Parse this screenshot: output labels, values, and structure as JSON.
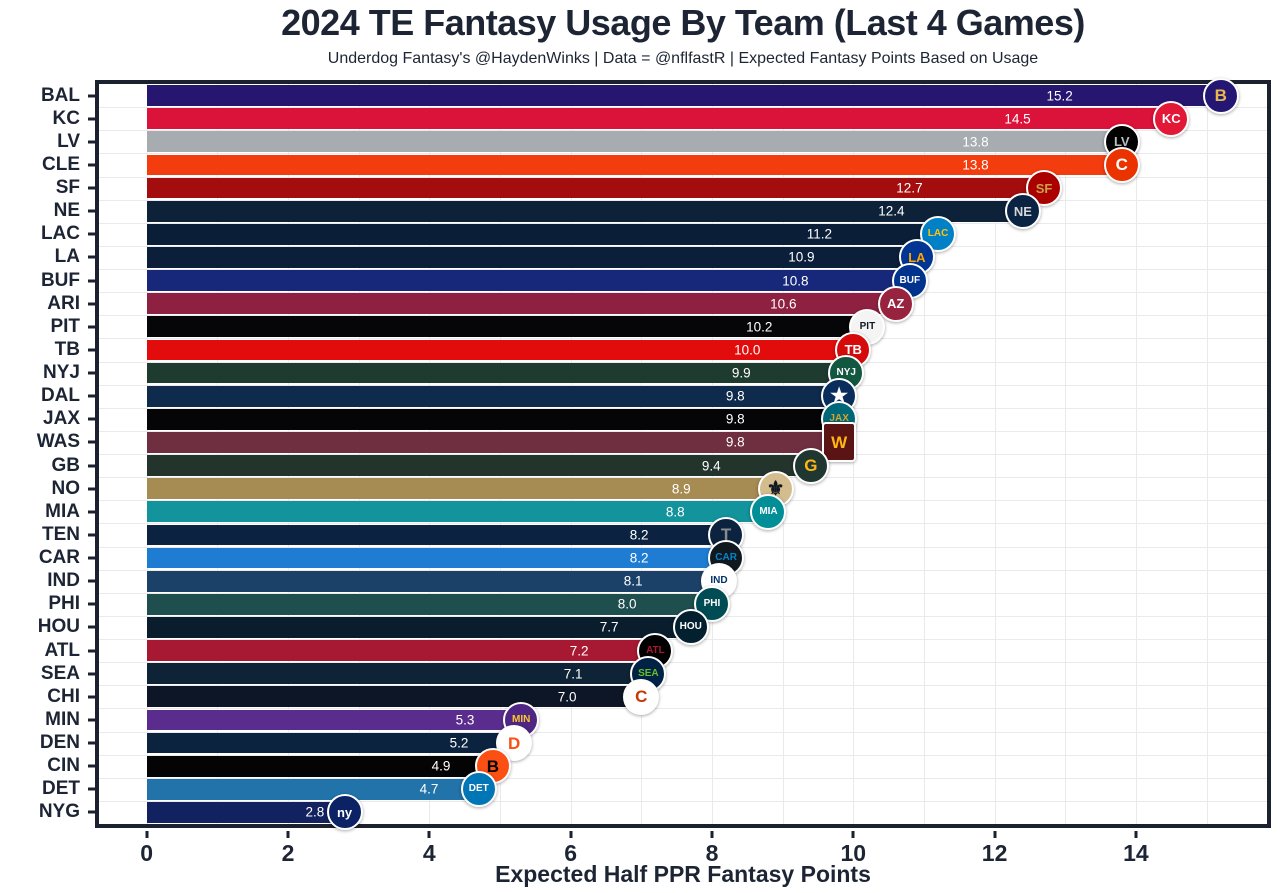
{
  "header": {
    "title": "2024 TE Fantasy Usage By Team (Last 4 Games)",
    "subtitle": "Underdog Fantasy's @HaydenWinks | Data = @nflfastR | Expected Fantasy Points Based on Usage"
  },
  "axis": {
    "xlabel": "Expected Half PPR Fantasy Points",
    "ticks": [
      0,
      2,
      4,
      6,
      8,
      10,
      12,
      14
    ],
    "domain_min": -0.675,
    "domain_max": 15.855,
    "grid_values": [
      0,
      1,
      2,
      3,
      4,
      5,
      6,
      7,
      8,
      9,
      10,
      11,
      12,
      13,
      14,
      15
    ]
  },
  "colors": {
    "text": "#1d2535",
    "panel_border": "#1b212e",
    "grid": "#e9e9ee",
    "bar_label": "#ffffff",
    "background": "#ffffff"
  },
  "chart_data": {
    "type": "bar",
    "orientation": "horizontal",
    "title": "2024 TE Fantasy Usage By Team (Last 4 Games)",
    "subtitle": "Underdog Fantasy's @HaydenWinks | Data = @nflfastR | Expected Fantasy Points Based on Usage",
    "xlabel": "Expected Half PPR Fantasy Points",
    "ylabel": "",
    "xlim": [
      0,
      15.9
    ],
    "grid": true,
    "legend": false,
    "categories": [
      "BAL",
      "KC",
      "LV",
      "CLE",
      "SF",
      "NE",
      "LAC",
      "LA",
      "BUF",
      "ARI",
      "PIT",
      "TB",
      "NYJ",
      "DAL",
      "JAX",
      "WAS",
      "GB",
      "NO",
      "MIA",
      "TEN",
      "CAR",
      "IND",
      "PHI",
      "HOU",
      "ATL",
      "SEA",
      "CHI",
      "MIN",
      "DEN",
      "CIN",
      "DET",
      "NYG"
    ],
    "values": [
      15.2,
      14.5,
      13.8,
      13.8,
      12.7,
      12.4,
      11.2,
      10.9,
      10.8,
      10.6,
      10.2,
      10.0,
      9.9,
      9.8,
      9.8,
      9.8,
      9.4,
      8.9,
      8.8,
      8.2,
      8.2,
      8.1,
      8.0,
      7.7,
      7.2,
      7.1,
      7.0,
      5.3,
      5.2,
      4.9,
      4.7,
      2.8
    ],
    "value_labels": [
      "15.2",
      "14.5",
      "13.8",
      "13.8",
      "12.7",
      "12.4",
      "11.2",
      "10.9",
      "10.8",
      "10.6",
      "10.2",
      "10.0",
      "9.9",
      "9.8",
      "9.8",
      "9.8",
      "9.4",
      "8.9",
      "8.8",
      "8.2",
      "8.2",
      "8.1",
      "8.0",
      "7.7",
      "7.2",
      "7.1",
      "7.0",
      "5.3",
      "5.2",
      "4.9",
      "4.7",
      "2.8"
    ],
    "bar_colors": [
      "#271670",
      "#DB1239",
      "#A6ACB0",
      "#F43D0E",
      "#A40D0D",
      "#0D2238",
      "#0A1E38",
      "#0B1F3A",
      "#17287B",
      "#8E2041",
      "#060608",
      "#E20C0C",
      "#1E3B2F",
      "#0E2A4C",
      "#050507",
      "#6F2F40",
      "#23342C",
      "#A68B52",
      "#13939C",
      "#0B2340",
      "#1E7DD3",
      "#1C4168",
      "#1E4E4E",
      "#0A1D2C",
      "#A71932",
      "#0E2336",
      "#0C1627",
      "#5A2C8D",
      "#0C2340",
      "#040405",
      "#2173A9",
      "#12215F"
    ]
  },
  "logos": {
    "BAL": {
      "bg": "#241773",
      "fg": "#E8B84F",
      "text": "B"
    },
    "KC": {
      "bg": "#E31837",
      "fg": "#FFFFFF",
      "text": "KC"
    },
    "LV": {
      "bg": "#000000",
      "fg": "#B9BEC1",
      "text": "LV"
    },
    "CLE": {
      "bg": "#EB3300",
      "fg": "#FFFFFF",
      "text": "C"
    },
    "SF": {
      "bg": "#AA0000",
      "fg": "#C9A24B",
      "text": "SF"
    },
    "NE": {
      "bg": "#0B2343",
      "fg": "#D6D6D6",
      "text": "NE"
    },
    "LAC": {
      "bg": "#0080C6",
      "fg": "#FFC20E",
      "text": "LAC"
    },
    "LA": {
      "bg": "#003594",
      "fg": "#FFA300",
      "text": "LA"
    },
    "BUF": {
      "bg": "#00338D",
      "fg": "#FFFFFF",
      "text": "BUF"
    },
    "ARI": {
      "bg": "#97233F",
      "fg": "#FFFFFF",
      "text": "AZ"
    },
    "PIT": {
      "bg": "#F4F4F4",
      "fg": "#101820",
      "text": "PIT"
    },
    "TB": {
      "bg": "#D50A0A",
      "fg": "#FFFFFF",
      "text": "TB"
    },
    "NYJ": {
      "bg": "#125740",
      "fg": "#FFFFFF",
      "text": "NYJ"
    },
    "DAL": {
      "bg": "#0A2E5C",
      "fg": "#FFFFFF",
      "text": "★"
    },
    "JAX": {
      "bg": "#006778",
      "fg": "#D7A22A",
      "text": "JAX"
    },
    "WAS": {
      "bg": "#5A1414",
      "fg": "#FFB612",
      "text": "W",
      "shape": "square"
    },
    "GB": {
      "bg": "#203731",
      "fg": "#FFB612",
      "text": "G"
    },
    "NO": {
      "bg": "#D3BC8D",
      "fg": "#101820",
      "text": "⚜"
    },
    "MIA": {
      "bg": "#008E97",
      "fg": "#FFFFFF",
      "text": "MIA"
    },
    "TEN": {
      "bg": "#0C2340",
      "fg": "#8A8D8F",
      "text": "T"
    },
    "CAR": {
      "bg": "#101820",
      "fg": "#0085CA",
      "text": "CAR"
    },
    "IND": {
      "bg": "#FFFFFF",
      "fg": "#013369",
      "text": "IND"
    },
    "PHI": {
      "bg": "#004C54",
      "fg": "#FFFFFF",
      "text": "PHI"
    },
    "HOU": {
      "bg": "#03202F",
      "fg": "#FFFFFF",
      "text": "HOU"
    },
    "ATL": {
      "bg": "#000000",
      "fg": "#A71930",
      "text": "ATL"
    },
    "SEA": {
      "bg": "#002244",
      "fg": "#69BE28",
      "text": "SEA"
    },
    "CHI": {
      "bg": "#FFFFFF",
      "fg": "#C83803",
      "text": "C"
    },
    "MIN": {
      "bg": "#4F2683",
      "fg": "#FFC62F",
      "text": "MIN"
    },
    "DEN": {
      "bg": "#FFFFFF",
      "fg": "#FB4F14",
      "text": "D"
    },
    "CIN": {
      "bg": "#FB4F14",
      "fg": "#000000",
      "text": "B"
    },
    "DET": {
      "bg": "#0076B6",
      "fg": "#FFFFFF",
      "text": "DET"
    },
    "NYG": {
      "bg": "#0B2265",
      "fg": "#FFFFFF",
      "text": "ny"
    }
  }
}
